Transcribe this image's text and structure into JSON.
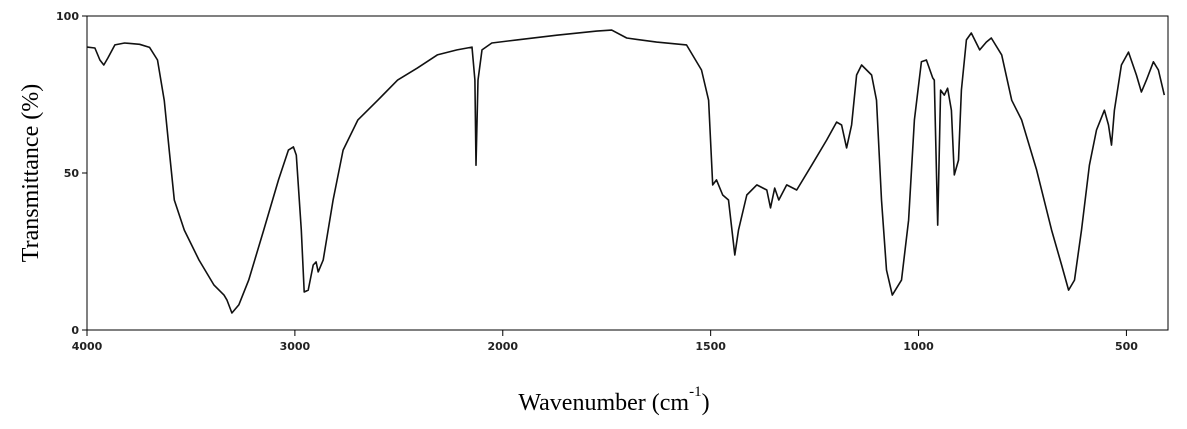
{
  "chart_data": {
    "type": "line",
    "x_label": {
      "text": "Wavenumber (cm",
      "superscript": "-1",
      "suffix": ")"
    },
    "y_label": "Transmittance (%)",
    "xlim": [
      4000,
      400
    ],
    "xticks": [
      4000,
      3000,
      2000,
      1500,
      1000,
      500
    ],
    "ylim": [
      0,
      100
    ],
    "yticks": [
      0,
      50,
      100
    ],
    "color": "#111111",
    "x": [
      4000,
      3962,
      3938,
      3919,
      3900,
      3866,
      3819,
      3747,
      3699,
      3661,
      3628,
      3604,
      3580,
      3532,
      3461,
      3389,
      3341,
      3327,
      3303,
      3270,
      3222,
      3150,
      3079,
      3031,
      3007,
      2993,
      2969,
      2955,
      2936,
      2912,
      2898,
      2888,
      2864,
      2816,
      2768,
      2697,
      2601,
      2506,
      2411,
      2315,
      2220,
      2148,
      2134,
      2129,
      2119,
      2100,
      2053,
      1966,
      1870,
      1774,
      1738,
      1702,
      1630,
      1558,
      1522,
      1505,
      1495,
      1486,
      1471,
      1457,
      1442,
      1433,
      1413,
      1389,
      1365,
      1356,
      1346,
      1336,
      1317,
      1293,
      1257,
      1221,
      1197,
      1185,
      1173,
      1161,
      1149,
      1137,
      1113,
      1101,
      1089,
      1077,
      1063,
      1041,
      1024,
      1010,
      993,
      981,
      966,
      962,
      954,
      947,
      938,
      930,
      921,
      914,
      904,
      897,
      885,
      873,
      853,
      837,
      825,
      800,
      776,
      752,
      716,
      680,
      656,
      639,
      625,
      608,
      589,
      572,
      553,
      543,
      536,
      529,
      512,
      495,
      476,
      464,
      452,
      435,
      423,
      409
    ],
    "values": [
      90.1,
      89.8,
      86,
      84.4,
      86.6,
      90.8,
      91.4,
      91,
      90,
      86,
      73,
      57,
      41.4,
      31.8,
      22.3,
      14.3,
      11.1,
      9.6,
      5.4,
      8,
      15.9,
      31.8,
      47.8,
      57.3,
      58.3,
      55.7,
      31.8,
      12.1,
      12.7,
      20.7,
      21.7,
      18.5,
      22.3,
      41.4,
      57.3,
      66.9,
      73.2,
      79.6,
      83.4,
      87.6,
      89.2,
      90.1,
      79.6,
      52.5,
      79.6,
      89.2,
      91.4,
      92.4,
      93.9,
      95.2,
      95.5,
      93,
      91.7,
      90.8,
      82.8,
      73.2,
      46.2,
      47.8,
      43,
      41.4,
      23.9,
      31.8,
      43,
      46.2,
      44.6,
      38.9,
      45.2,
      41.4,
      46.2,
      44.6,
      52.5,
      60.5,
      66.2,
      65.3,
      58,
      65.3,
      81.2,
      84.4,
      81.2,
      73.2,
      41.4,
      19.1,
      11.1,
      15.9,
      35,
      66.9,
      85.4,
      86,
      80.3,
      79.6,
      33.4,
      76.4,
      74.8,
      77,
      70,
      49.4,
      54.1,
      76.4,
      92.4,
      94.6,
      89.2,
      91.7,
      93,
      87.6,
      73.2,
      66.9,
      51,
      31.8,
      20.7,
      12.7,
      15.9,
      31.8,
      52.5,
      63.7,
      70,
      65.3,
      58.9,
      70,
      84.4,
      88.5,
      81.2,
      75.8,
      79.6,
      85.4,
      82.8,
      74.8
    ]
  }
}
